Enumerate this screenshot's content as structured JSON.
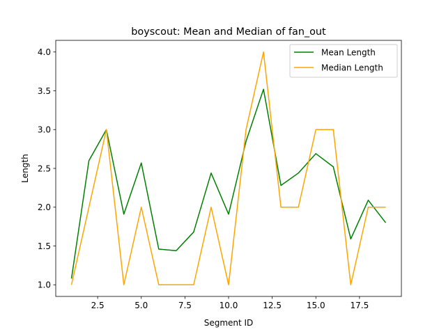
{
  "chart_data": {
    "type": "line",
    "title": "boyscout: Mean and Median of fan_out",
    "xlabel": "Segment ID",
    "ylabel": "Length",
    "xlim": [
      0.1,
      19.9
    ],
    "ylim": [
      0.85,
      4.15
    ],
    "xticks": [
      2.5,
      5.0,
      7.5,
      10.0,
      12.5,
      15.0,
      17.5
    ],
    "xtick_labels": [
      "2.5",
      "5.0",
      "7.5",
      "10.0",
      "12.5",
      "15.0",
      "17.5"
    ],
    "yticks": [
      1.0,
      1.5,
      2.0,
      2.5,
      3.0,
      3.5,
      4.0
    ],
    "ytick_labels": [
      "1.0",
      "1.5",
      "2.0",
      "2.5",
      "3.0",
      "3.5",
      "4.0"
    ],
    "grid": false,
    "legend": "top-right",
    "x": [
      1,
      2,
      3,
      4,
      5,
      6,
      7,
      8,
      9,
      10,
      11,
      12,
      13,
      14,
      15,
      16,
      17,
      18,
      19
    ],
    "series": [
      {
        "name": "Mean Length",
        "color": "#008000",
        "values": [
          1.08,
          2.6,
          3.0,
          1.91,
          2.57,
          1.46,
          1.44,
          1.68,
          2.44,
          1.91,
          2.85,
          3.52,
          2.28,
          2.44,
          2.69,
          2.52,
          1.59,
          2.09,
          1.8
        ]
      },
      {
        "name": "Median Length",
        "color": "#ffa500",
        "values": [
          1.0,
          2.0,
          3.0,
          1.0,
          2.0,
          1.0,
          1.0,
          1.0,
          2.0,
          1.0,
          3.0,
          4.0,
          2.0,
          2.0,
          3.0,
          3.0,
          1.0,
          2.0,
          2.0
        ]
      }
    ]
  }
}
